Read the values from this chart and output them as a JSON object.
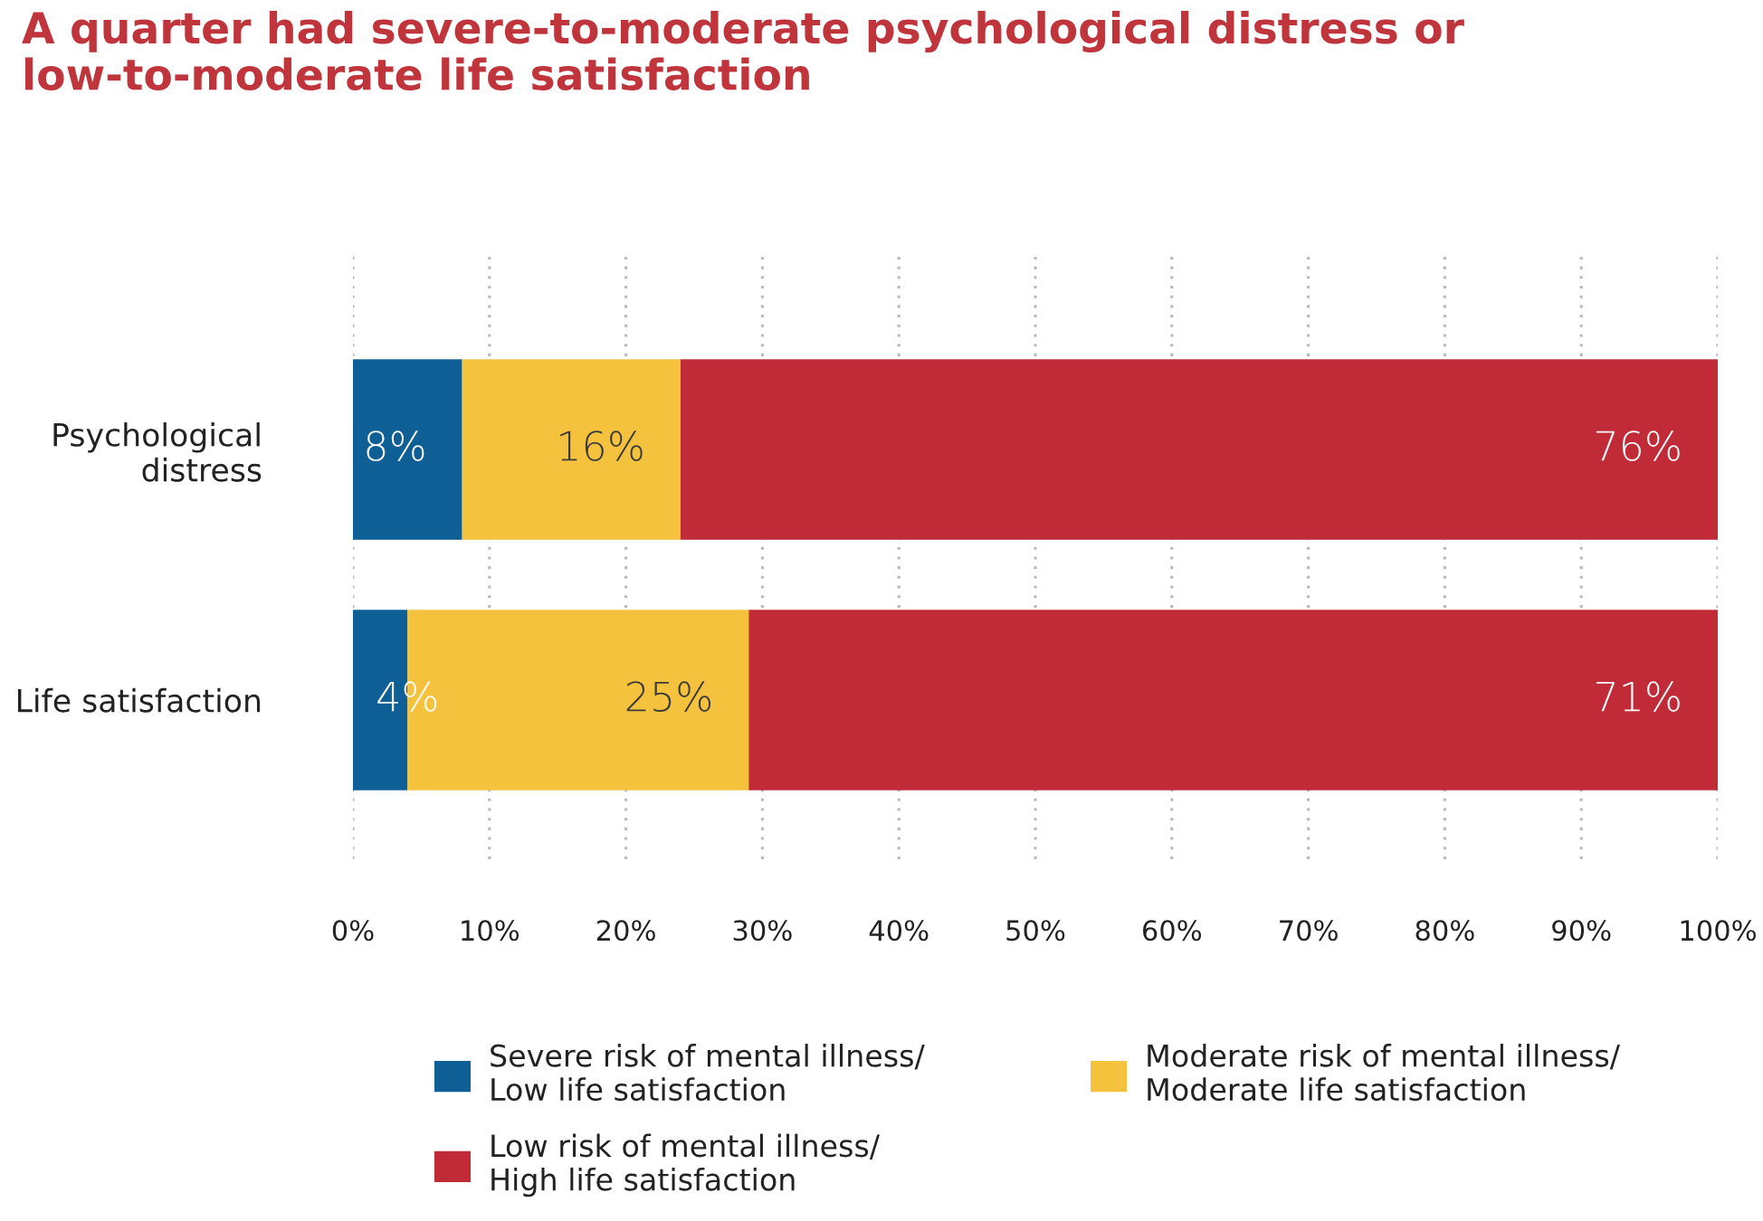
{
  "chart_data": {
    "type": "bar",
    "orientation": "horizontal",
    "stacked": true,
    "title": "A quarter had severe-to-moderate psychological distress or\nlow-to-moderate life satisfaction",
    "categories": [
      "Psychological\ndistress",
      "Life satisfaction"
    ],
    "series": [
      {
        "name": "Severe risk of mental illness/\nLow life satisfaction",
        "color": "#0e5f96",
        "values": [
          8,
          4
        ],
        "value_labels": [
          "8%",
          "4%"
        ]
      },
      {
        "name": "Moderate risk of mental illness/\nModerate life satisfaction",
        "color": "#f5c23e",
        "values": [
          16,
          25
        ],
        "value_labels": [
          "16%",
          "25%"
        ]
      },
      {
        "name": "Low risk of mental illness/\nHigh life satisfaction",
        "color": "#c12b37",
        "values": [
          76,
          71
        ],
        "value_labels": [
          "76%",
          "71%"
        ]
      }
    ],
    "xlim": [
      0,
      100
    ],
    "xticks": [
      {
        "value": 0,
        "label": "0%"
      },
      {
        "value": 10,
        "label": "10%"
      },
      {
        "value": 20,
        "label": "20%"
      },
      {
        "value": 30,
        "label": "30%"
      },
      {
        "value": 40,
        "label": "40%"
      },
      {
        "value": 50,
        "label": "50%"
      },
      {
        "value": 60,
        "label": "60%"
      },
      {
        "value": 70,
        "label": "70%"
      },
      {
        "value": 80,
        "label": "80%"
      },
      {
        "value": 90,
        "label": "90%"
      },
      {
        "value": 100,
        "label": "100%"
      }
    ],
    "grid": "x",
    "legend": "bottom"
  }
}
